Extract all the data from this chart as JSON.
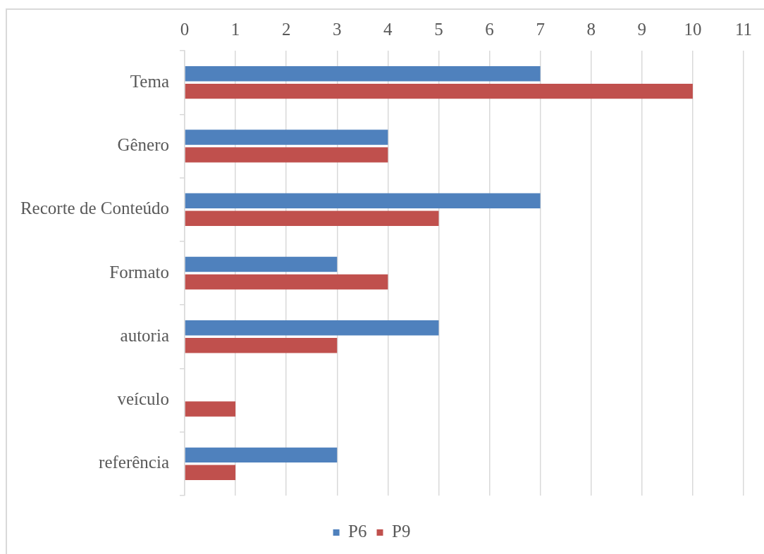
{
  "chart_data": {
    "type": "bar",
    "orientation": "horizontal",
    "categories": [
      "Tema",
      "Gênero",
      "Recorte de Conteúdo",
      "Formato",
      "autoria",
      "veículo",
      "referência"
    ],
    "series": [
      {
        "name": "P6",
        "color": "#4f81bd",
        "values": [
          7,
          4,
          7,
          3,
          5,
          0,
          3
        ]
      },
      {
        "name": "P9",
        "color": "#c0504d",
        "values": [
          10,
          4,
          5,
          4,
          3,
          1,
          1
        ]
      }
    ],
    "xlim": [
      0,
      11
    ],
    "xticks": [
      0,
      1,
      2,
      3,
      4,
      5,
      6,
      7,
      8,
      9,
      10,
      11
    ],
    "grid": "x",
    "legend": "bottom"
  }
}
